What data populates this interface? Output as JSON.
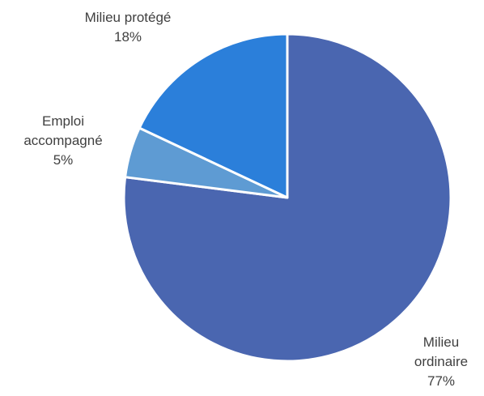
{
  "chart_data": {
    "type": "pie",
    "slices": [
      {
        "label_lines": [
          "Milieu",
          "ordinaire"
        ],
        "percent_label": "77%",
        "value": 77,
        "color": "#4A66B0"
      },
      {
        "label_lines": [
          "Emploi",
          "accompagné"
        ],
        "percent_label": "5%",
        "value": 5,
        "color": "#5E9BD3"
      },
      {
        "label_lines": [
          "Milieu protégé"
        ],
        "percent_label": "18%",
        "value": 18,
        "color": "#2B7FDA"
      }
    ],
    "start_angle_deg": 0,
    "direction": "clockwise",
    "slice_border_color": "#ffffff",
    "legend": "none"
  }
}
